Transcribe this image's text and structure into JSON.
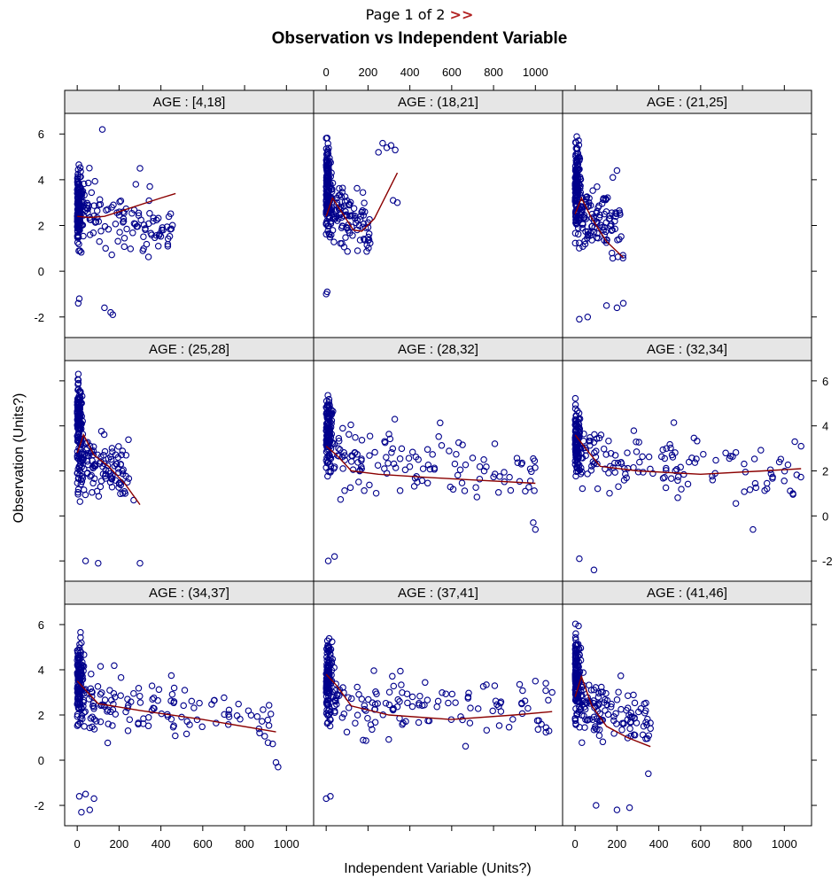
{
  "pager": {
    "text": "Page 1 of 2",
    "next": ">>"
  },
  "chart_data": {
    "type": "scatter",
    "title": "Observation vs Independent Variable",
    "xlabel": "Independent Variable (Units?)",
    "ylabel": "Observation (Units?)",
    "xlim": [
      -60,
      1130
    ],
    "ylim": [
      -2.9,
      6.9
    ],
    "x_ticks": [
      0,
      200,
      400,
      600,
      800,
      1000
    ],
    "y_ticks": [
      -2,
      0,
      2,
      4,
      6
    ],
    "point_color": "#00008b",
    "smooth_color": "#8b0000",
    "strip_color": "#e6e6e6",
    "layout": {
      "rows": 3,
      "cols": 3
    },
    "panels": [
      {
        "label": "AGE : [4,18]",
        "smooth": [
          [
            0,
            2.4
          ],
          [
            60,
            2.35
          ],
          [
            130,
            2.4
          ],
          [
            250,
            2.75
          ],
          [
            400,
            3.2
          ],
          [
            470,
            3.4
          ]
        ],
        "cluster": {
          "xmax": 470,
          "ymin": -1.9,
          "ymax": 6.2,
          "peak": 2.8
        },
        "extra": [
          [
            5,
            -1.4
          ],
          [
            10,
            -1.2
          ],
          [
            130,
            -1.6
          ],
          [
            160,
            -1.8
          ],
          [
            170,
            -1.9
          ],
          [
            280,
            3.8
          ],
          [
            300,
            4.5
          ],
          [
            120,
            6.2
          ]
        ]
      },
      {
        "label": "AGE : (18,21]",
        "smooth": [
          [
            0,
            2.4
          ],
          [
            30,
            3.2
          ],
          [
            80,
            2.5
          ],
          [
            130,
            1.8
          ],
          [
            170,
            1.75
          ],
          [
            230,
            2.3
          ],
          [
            340,
            4.3
          ]
        ],
        "cluster": {
          "xmax": 220,
          "ymin": -1.1,
          "ymax": 5.9,
          "peak": 4.0
        },
        "extra": [
          [
            250,
            5.2
          ],
          [
            270,
            5.6
          ],
          [
            290,
            5.4
          ],
          [
            310,
            5.5
          ],
          [
            330,
            5.3
          ],
          [
            340,
            3.0
          ],
          [
            320,
            3.1
          ],
          [
            0,
            -1.0
          ],
          [
            5,
            -0.9
          ]
        ]
      },
      {
        "label": "AGE : (21,25]",
        "smooth": [
          [
            0,
            2.5
          ],
          [
            30,
            3.2
          ],
          [
            80,
            2.3
          ],
          [
            150,
            1.3
          ],
          [
            230,
            0.6
          ]
        ],
        "cluster": {
          "xmax": 230,
          "ymin": -2.1,
          "ymax": 6.4,
          "peak": 4.0
        },
        "extra": [
          [
            150,
            -1.5
          ],
          [
            200,
            -1.6
          ],
          [
            230,
            -1.4
          ],
          [
            20,
            -2.1
          ],
          [
            60,
            -2.0
          ],
          [
            200,
            4.4
          ],
          [
            180,
            4.1
          ]
        ]
      },
      {
        "label": "AGE : (25,28]",
        "smooth": [
          [
            0,
            2.8
          ],
          [
            30,
            3.6
          ],
          [
            80,
            2.7
          ],
          [
            150,
            2.2
          ],
          [
            230,
            1.4
          ],
          [
            300,
            0.5
          ]
        ],
        "cluster": {
          "xmax": 250,
          "ymin": -2.2,
          "ymax": 6.3,
          "peak": 4.5
        },
        "extra": [
          [
            40,
            -2.0
          ],
          [
            100,
            -2.1
          ],
          [
            300,
            -2.1
          ],
          [
            270,
            0.7
          ],
          [
            240,
            1.5
          ]
        ]
      },
      {
        "label": "AGE : (28,32]",
        "smooth": [
          [
            0,
            3.1
          ],
          [
            50,
            2.7
          ],
          [
            120,
            2.0
          ],
          [
            250,
            1.85
          ],
          [
            500,
            1.7
          ],
          [
            800,
            1.55
          ],
          [
            1000,
            1.45
          ]
        ],
        "cluster": {
          "xmax": 1000,
          "ymin": -2.0,
          "ymax": 6.2,
          "peak": 3.8
        },
        "extra": [
          [
            10,
            -2.0
          ],
          [
            40,
            -1.8
          ],
          [
            1000,
            -0.6
          ],
          [
            990,
            -0.3
          ]
        ]
      },
      {
        "label": "AGE : (32,34]",
        "smooth": [
          [
            0,
            3.6
          ],
          [
            50,
            3.0
          ],
          [
            120,
            2.2
          ],
          [
            300,
            2.0
          ],
          [
            600,
            1.85
          ],
          [
            900,
            2.0
          ],
          [
            1080,
            2.1
          ]
        ],
        "cluster": {
          "xmax": 1080,
          "ymin": -2.4,
          "ymax": 6.1,
          "peak": 3.5
        },
        "extra": [
          [
            20,
            -1.9
          ],
          [
            90,
            -2.4
          ],
          [
            1050,
            3.3
          ],
          [
            1080,
            3.1
          ],
          [
            850,
            -0.6
          ]
        ]
      },
      {
        "label": "AGE : (34,37]",
        "smooth": [
          [
            0,
            3.5
          ],
          [
            50,
            3.0
          ],
          [
            100,
            2.5
          ],
          [
            300,
            2.2
          ],
          [
            600,
            1.8
          ],
          [
            950,
            1.25
          ]
        ],
        "cluster": {
          "xmax": 960,
          "ymin": -2.3,
          "ymax": 6.1,
          "peak": 3.6
        },
        "extra": [
          [
            10,
            -1.6
          ],
          [
            40,
            -1.5
          ],
          [
            60,
            -2.2
          ],
          [
            20,
            -2.3
          ],
          [
            80,
            -1.7
          ],
          [
            960,
            -0.3
          ],
          [
            950,
            -0.1
          ]
        ]
      },
      {
        "label": "AGE : (37,41]",
        "smooth": [
          [
            0,
            3.8
          ],
          [
            50,
            3.3
          ],
          [
            120,
            2.4
          ],
          [
            300,
            2.0
          ],
          [
            600,
            1.8
          ],
          [
            900,
            2.0
          ],
          [
            1080,
            2.15
          ]
        ],
        "cluster": {
          "xmax": 1080,
          "ymin": -1.7,
          "ymax": 6.0,
          "peak": 3.6
        },
        "extra": [
          [
            0,
            -1.7
          ],
          [
            20,
            -1.6
          ],
          [
            1050,
            3.4
          ],
          [
            1080,
            3.0
          ],
          [
            1000,
            3.5
          ]
        ]
      },
      {
        "label": "AGE : (41,46]",
        "smooth": [
          [
            0,
            2.8
          ],
          [
            30,
            3.7
          ],
          [
            80,
            2.4
          ],
          [
            150,
            1.5
          ],
          [
            250,
            1.0
          ],
          [
            360,
            0.6
          ]
        ],
        "cluster": {
          "xmax": 360,
          "ymin": -2.3,
          "ymax": 6.1,
          "peak": 4.0
        },
        "extra": [
          [
            100,
            -2.0
          ],
          [
            200,
            -2.2
          ],
          [
            260,
            -2.1
          ],
          [
            350,
            -0.6
          ],
          [
            360,
            1.4
          ]
        ]
      }
    ]
  }
}
